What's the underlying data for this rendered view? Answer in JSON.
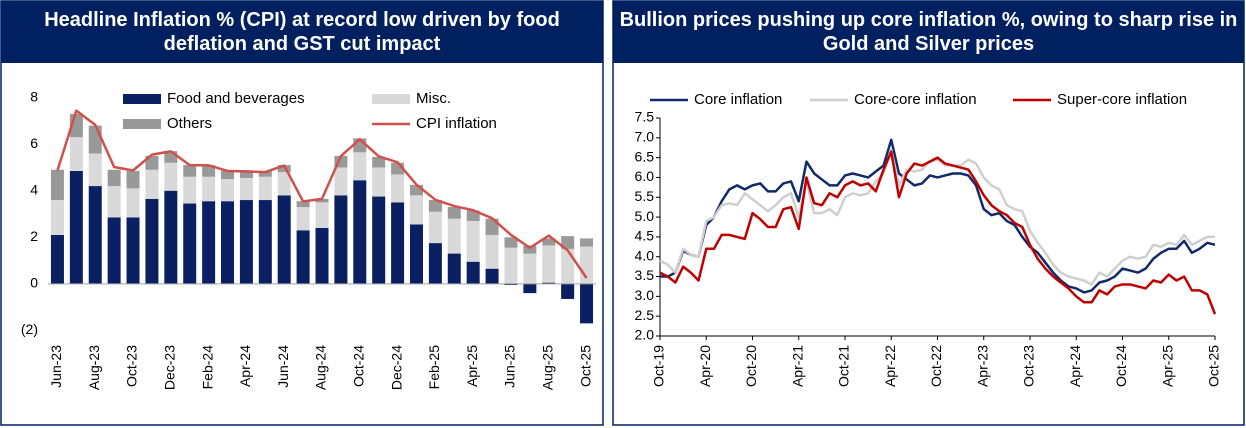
{
  "chart_data": [
    {
      "type": "bar",
      "stacked": true,
      "title": "Headline Inflation % (CPI) at record low driven by food deflation and GST cut impact",
      "categories": [
        "Jun-23",
        null,
        "Aug-23",
        null,
        "Oct-23",
        null,
        "Dec-23",
        null,
        "Feb-24",
        null,
        "Apr-24",
        null,
        "Jun-24",
        null,
        "Aug-24",
        null,
        "Oct-24",
        null,
        "Dec-24",
        null,
        "Feb-25",
        null,
        "Apr-25",
        null,
        "Jun-25",
        null,
        "Aug-25",
        null,
        "Oct-25"
      ],
      "series": [
        {
          "name": "Food and beverages",
          "type": "bar",
          "color": "#0b1f63",
          "values": [
            2.1,
            4.85,
            4.2,
            2.85,
            2.85,
            3.65,
            4.0,
            3.45,
            3.55,
            3.55,
            3.6,
            3.6,
            3.8,
            2.3,
            2.4,
            3.8,
            4.45,
            3.75,
            3.5,
            2.55,
            1.75,
            1.3,
            0.95,
            0.65,
            -0.05,
            -0.4,
            0.05,
            -0.65,
            -1.7
          ]
        },
        {
          "name": "Misc.",
          "type": "bar",
          "color": "#d9d9d9",
          "values": [
            1.5,
            1.45,
            1.4,
            1.35,
            1.25,
            1.25,
            1.2,
            1.15,
            1.05,
            0.95,
            0.95,
            1.0,
            1.0,
            1.0,
            1.1,
            1.2,
            1.2,
            1.25,
            1.2,
            1.25,
            1.35,
            1.5,
            1.75,
            1.45,
            1.55,
            1.3,
            1.6,
            1.5,
            1.6
          ]
        },
        {
          "name": "Others",
          "type": "bar",
          "color": "#999999",
          "values": [
            1.3,
            1.0,
            1.2,
            0.7,
            0.75,
            0.6,
            0.5,
            0.5,
            0.5,
            0.35,
            0.3,
            0.25,
            0.3,
            0.25,
            0.15,
            0.5,
            0.6,
            0.45,
            0.5,
            0.45,
            0.5,
            0.5,
            0.45,
            0.7,
            0.45,
            0.35,
            0.3,
            0.55,
            0.35
          ]
        },
        {
          "name": "CPI inflation",
          "type": "line",
          "color": "#d0504c",
          "values": [
            4.87,
            7.44,
            6.83,
            5.02,
            4.87,
            5.55,
            5.69,
            5.1,
            5.09,
            4.85,
            4.83,
            4.8,
            5.08,
            3.54,
            3.65,
            5.49,
            6.21,
            5.48,
            5.22,
            4.26,
            3.61,
            3.34,
            3.16,
            2.82,
            2.1,
            1.55,
            2.07,
            1.44,
            0.25
          ]
        }
      ],
      "ylim": [
        -2.5,
        8.5
      ],
      "yticks": [
        8,
        6,
        4,
        2,
        0,
        {
          "value": -2,
          "label": "(2)"
        }
      ],
      "grid": false
    },
    {
      "type": "line",
      "title": "Bullion prices pushing up core inflation %, owing to sharp rise in Gold and Silver prices",
      "categories": [
        "Oct-19",
        null,
        null,
        null,
        null,
        null,
        "Apr-20",
        null,
        null,
        null,
        null,
        null,
        "Oct-20",
        null,
        null,
        null,
        null,
        null,
        "Apr-21",
        null,
        null,
        null,
        null,
        null,
        "Oct-21",
        null,
        null,
        null,
        null,
        null,
        "Apr-22",
        null,
        null,
        null,
        null,
        null,
        "Oct-22",
        null,
        null,
        null,
        null,
        null,
        "Apr-23",
        null,
        null,
        null,
        null,
        null,
        "Oct-23",
        null,
        null,
        null,
        null,
        null,
        "Apr-24",
        null,
        null,
        null,
        null,
        null,
        "Oct-24",
        null,
        null,
        null,
        null,
        null,
        "Apr-25",
        null,
        null,
        null,
        null,
        null,
        "Oct-25"
      ],
      "series": [
        {
          "name": "Core inflation",
          "color": "#102a6b",
          "values": [
            3.5,
            3.5,
            3.6,
            4.15,
            4.05,
            4.0,
            4.8,
            5.0,
            5.4,
            5.7,
            5.8,
            5.7,
            5.8,
            5.85,
            5.65,
            5.65,
            5.85,
            5.9,
            5.4,
            6.4,
            6.1,
            5.95,
            5.8,
            5.8,
            6.05,
            6.1,
            6.05,
            6.0,
            6.15,
            6.3,
            6.95,
            6.1,
            5.95,
            5.8,
            5.85,
            6.05,
            6.0,
            6.05,
            6.1,
            6.1,
            6.05,
            5.8,
            5.2,
            5.05,
            5.1,
            4.9,
            4.8,
            4.5,
            4.25,
            4.1,
            3.85,
            3.6,
            3.4,
            3.25,
            3.2,
            3.1,
            3.15,
            3.35,
            3.4,
            3.5,
            3.7,
            3.65,
            3.6,
            3.7,
            3.95,
            4.1,
            4.2,
            4.2,
            4.4,
            4.1,
            4.2,
            4.35,
            4.3
          ]
        },
        {
          "name": "Core-core inflation",
          "color": "#cfcfcf",
          "values": [
            3.9,
            3.8,
            3.6,
            4.2,
            4.05,
            4.0,
            4.9,
            5.0,
            5.3,
            5.35,
            5.3,
            5.6,
            5.45,
            5.3,
            5.15,
            5.3,
            5.5,
            5.6,
            5.0,
            5.9,
            5.1,
            5.1,
            5.2,
            5.05,
            5.5,
            5.6,
            5.55,
            5.6,
            5.9,
            6.1,
            6.7,
            5.8,
            6.2,
            6.15,
            6.2,
            6.4,
            6.45,
            6.3,
            6.3,
            6.3,
            6.45,
            6.35,
            6.0,
            5.8,
            5.7,
            5.3,
            5.2,
            5.15,
            4.65,
            4.35,
            4.1,
            3.8,
            3.6,
            3.5,
            3.45,
            3.4,
            3.3,
            3.6,
            3.5,
            3.7,
            3.9,
            4.0,
            3.95,
            4.0,
            4.3,
            4.25,
            4.35,
            4.3,
            4.55,
            4.3,
            4.4,
            4.5,
            4.5
          ]
        },
        {
          "name": "Super-core inflation",
          "color": "#c00000",
          "values": [
            3.6,
            3.5,
            3.35,
            3.75,
            3.6,
            3.4,
            4.2,
            4.2,
            4.55,
            4.55,
            4.5,
            4.45,
            5.1,
            4.95,
            4.75,
            4.75,
            5.2,
            5.25,
            4.7,
            6.0,
            5.35,
            5.3,
            5.6,
            5.5,
            5.8,
            5.9,
            5.8,
            5.85,
            5.65,
            6.2,
            6.65,
            5.5,
            6.1,
            6.35,
            6.3,
            6.4,
            6.5,
            6.35,
            6.3,
            6.25,
            6.2,
            5.9,
            5.55,
            5.3,
            5.15,
            5.05,
            4.85,
            4.75,
            4.3,
            3.95,
            3.7,
            3.5,
            3.35,
            3.2,
            3.0,
            2.85,
            2.85,
            3.15,
            3.05,
            3.25,
            3.3,
            3.3,
            3.25,
            3.2,
            3.4,
            3.35,
            3.55,
            3.4,
            3.5,
            3.15,
            3.15,
            3.05,
            2.55
          ]
        }
      ],
      "ylim": [
        2,
        7.5
      ],
      "yticks": [
        {
          "value": 2,
          "label": "2.0"
        },
        {
          "value": 2.5,
          "label": "2.5"
        },
        {
          "value": 3,
          "label": "3.0"
        },
        {
          "value": 3.5,
          "label": "3.5"
        },
        {
          "value": 4,
          "label": "4.0"
        },
        {
          "value": 4.5,
          "label": "4.5"
        },
        {
          "value": 5,
          "label": "5.0"
        },
        {
          "value": 5.5,
          "label": "5.5"
        },
        {
          "value": 6,
          "label": "6.0"
        },
        {
          "value": 6.5,
          "label": "6.5"
        },
        {
          "value": 7,
          "label": "7.0"
        },
        {
          "value": 7.5,
          "label": "7.5"
        }
      ],
      "grid": false
    }
  ]
}
